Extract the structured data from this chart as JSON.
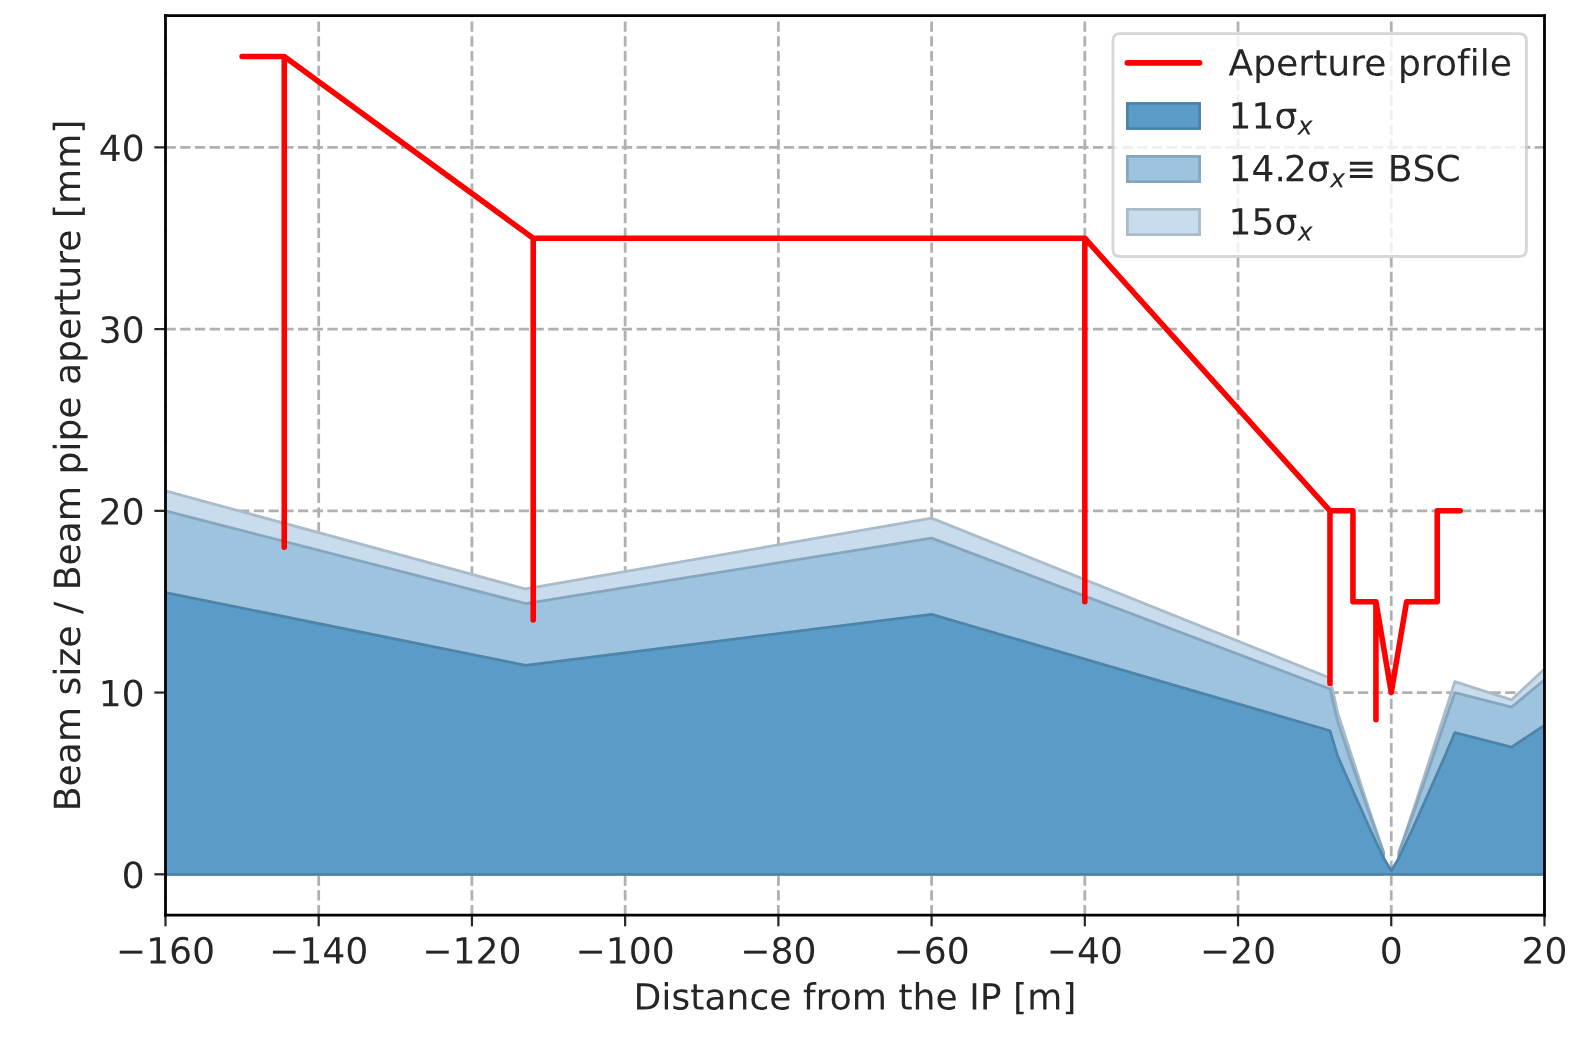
{
  "chart_data": {
    "type": "area",
    "xlabel": "Distance from the IP [m]",
    "ylabel": "Beam size / Beam pipe aperture [mm]",
    "xlim": [
      -160,
      20
    ],
    "xticks": [
      {
        "value": -160,
        "label": "−160"
      },
      {
        "value": -140,
        "label": "−140"
      },
      {
        "value": -120,
        "label": "−120"
      },
      {
        "value": -100,
        "label": "−100"
      },
      {
        "value": -80,
        "label": "−80"
      },
      {
        "value": -60,
        "label": "−60"
      },
      {
        "value": -40,
        "label": "−40"
      },
      {
        "value": -20,
        "label": "−20"
      },
      0,
      20
    ],
    "ylim": [
      -2.25,
      47.25
    ],
    "yticks": [
      0,
      10,
      20,
      30,
      40
    ],
    "grid": true,
    "legend": "top right",
    "series": [
      {
        "name": "Aperture profile",
        "type": "line",
        "color": "#ff0000",
        "line_style": "solid",
        "x": [
          -150,
          -144.5,
          -144.5,
          -144.5,
          -112,
          -112,
          -112,
          -40,
          -40,
          -40,
          -8,
          -8,
          -8,
          -5,
          -5,
          -2,
          -2,
          -2,
          0,
          2,
          6,
          6,
          9
        ],
        "values": [
          45,
          45,
          18,
          45,
          35,
          14,
          35,
          35,
          15,
          35,
          20,
          10.5,
          20,
          20,
          15,
          15,
          8.5,
          15,
          10,
          15,
          15,
          20,
          20
        ]
      },
      {
        "name": "11σ$_{x}$",
        "color": "#5b9bc8",
        "x": [
          -160,
          -113,
          -60,
          -8,
          -7,
          -5,
          -3,
          -1,
          0,
          1,
          3,
          5,
          7,
          8.3,
          15.7,
          20
        ],
        "values": [
          15.5,
          11.5,
          14.3,
          7.9,
          6.5,
          4.6,
          2.7,
          0.9,
          0.2,
          0.9,
          2.7,
          4.6,
          6.5,
          7.8,
          7.0,
          8.2
        ]
      },
      {
        "name": "14.2σ$_{x}$≡ BSC",
        "color": "#9dc3df",
        "x": [
          -160,
          -113,
          -60,
          -8,
          -7,
          -5,
          -3,
          -1,
          0,
          1,
          3,
          5,
          7,
          8.3,
          15.7,
          20
        ],
        "values": [
          20,
          14.9,
          18.5,
          10.2,
          8.4,
          5.9,
          3.5,
          1.2,
          null,
          1.2,
          3.5,
          5.9,
          8.4,
          10.0,
          9.2,
          10.7
        ]
      },
      {
        "name": "15σ$_{x}$",
        "color": "#c8dced",
        "x": [
          -160,
          -113,
          -60,
          -8,
          -7,
          -5,
          -3,
          -1,
          0,
          1,
          3,
          5,
          7,
          8.3,
          15.7,
          20
        ],
        "values": [
          21.1,
          15.7,
          19.6,
          10.8,
          8.9,
          6.3,
          3.7,
          1.2,
          null,
          1.2,
          3.7,
          6.3,
          8.9,
          10.6,
          9.6,
          11.3
        ]
      }
    ]
  }
}
